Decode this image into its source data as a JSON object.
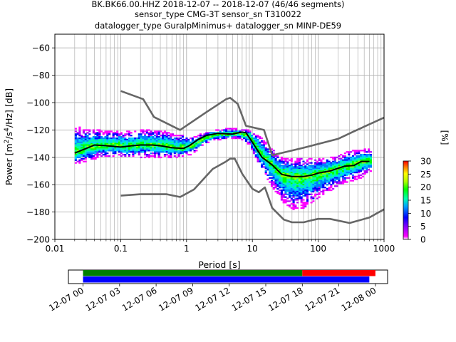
{
  "chart_data": {
    "type": "line",
    "title_lines": [
      "BK.BK66.00.HHZ   2018-12-07 -- 2018-12-07  (46/46 segments)",
      "sensor_type CMG-3T sensor_sn T310022",
      "datalogger_type GuralpMinimus+ datalogger_sn MINP-DE59"
    ],
    "xlabel": "Period [s]",
    "ylabel": "Power [$m^2/s^4/Hz$] [dB]",
    "x_scale": "log",
    "xlim": [
      0.01,
      1000
    ],
    "ylim": [
      -200,
      -50
    ],
    "x_ticks": [
      {
        "value": 0.01,
        "label": "0.01"
      },
      {
        "value": 0.1,
        "label": "0.1"
      },
      {
        "value": 1,
        "label": "1"
      },
      {
        "value": 10,
        "label": "10"
      },
      {
        "value": 100,
        "label": "100"
      },
      {
        "value": 1000,
        "label": "1000"
      }
    ],
    "y_ticks": [
      {
        "value": -60,
        "label": "−60"
      },
      {
        "value": -80,
        "label": "−80"
      },
      {
        "value": -100,
        "label": "−100"
      },
      {
        "value": -120,
        "label": "−120"
      },
      {
        "value": -140,
        "label": "−140"
      },
      {
        "value": -160,
        "label": "−160"
      },
      {
        "value": -180,
        "label": "−180"
      },
      {
        "value": -200,
        "label": "−200"
      }
    ],
    "grid": true,
    "series": [
      {
        "color": "#666666",
        "points": [
          [
            0.1,
            -91.5
          ],
          [
            0.22,
            -97.5
          ],
          [
            0.32,
            -110.5
          ],
          [
            0.8,
            -120
          ],
          [
            2,
            -107
          ],
          [
            4,
            -97.5
          ],
          [
            4.6,
            -96.5
          ],
          [
            6,
            -101
          ],
          [
            8,
            -117
          ],
          [
            15,
            -120
          ],
          [
            20,
            -138.5
          ],
          [
            60,
            -133
          ],
          [
            200,
            -126.5
          ],
          [
            350,
            -121
          ],
          [
            1000,
            -111
          ]
        ]
      },
      {
        "color": "#666666",
        "points": [
          [
            0.1,
            -168
          ],
          [
            0.2,
            -167
          ],
          [
            0.5,
            -167
          ],
          [
            0.8,
            -169
          ],
          [
            1.3,
            -163.5
          ],
          [
            2.5,
            -148.5
          ],
          [
            4,
            -143
          ],
          [
            4.6,
            -141
          ],
          [
            5.4,
            -141
          ],
          [
            7,
            -152
          ],
          [
            10,
            -163
          ],
          [
            12.5,
            -165.5
          ],
          [
            15.5,
            -162
          ],
          [
            20,
            -177
          ],
          [
            30,
            -185.5
          ],
          [
            40,
            -187.5
          ],
          [
            60,
            -187.5
          ],
          [
            80,
            -186
          ],
          [
            100,
            -185
          ],
          [
            150,
            -185
          ],
          [
            300,
            -188
          ],
          [
            600,
            -184
          ],
          [
            1000,
            -178
          ]
        ]
      },
      {
        "color": "#000000",
        "points": [
          [
            0.02,
            -137
          ],
          [
            0.025,
            -135
          ],
          [
            0.03,
            -133.5
          ],
          [
            0.04,
            -131
          ],
          [
            0.06,
            -131.5
          ],
          [
            0.1,
            -132.5
          ],
          [
            0.15,
            -131.5
          ],
          [
            0.2,
            -131
          ],
          [
            0.3,
            -131
          ],
          [
            0.4,
            -131.5
          ],
          [
            0.6,
            -133
          ],
          [
            0.9,
            -133.5
          ],
          [
            1.1,
            -131.5
          ],
          [
            1.5,
            -127
          ],
          [
            2,
            -124
          ],
          [
            3,
            -122.5
          ],
          [
            5,
            -123
          ],
          [
            7,
            -121.5
          ],
          [
            8,
            -122
          ],
          [
            10,
            -129
          ],
          [
            14,
            -140
          ],
          [
            20,
            -145.5
          ],
          [
            28,
            -152.5
          ],
          [
            40,
            -154
          ],
          [
            60,
            -154
          ],
          [
            80,
            -153
          ],
          [
            100,
            -151.5
          ],
          [
            150,
            -150
          ],
          [
            250,
            -146.5
          ],
          [
            350,
            -146
          ],
          [
            450,
            -143
          ],
          [
            600,
            -143
          ]
        ]
      }
    ],
    "density_clouds": [
      {
        "periods": [
          0.02,
          0.03,
          0.05,
          0.08,
          0.13,
          0.2,
          0.32,
          0.5,
          0.8,
          1.2,
          1.8,
          2.7,
          4,
          6,
          9,
          13,
          19,
          28,
          42,
          60,
          90,
          130,
          200,
          300,
          450,
          650
        ],
        "center": [
          -137,
          -134,
          -131,
          -131.5,
          -132.5,
          -131,
          -131,
          -132,
          -133.5,
          -132,
          -127,
          -123.5,
          -123,
          -122.5,
          -124,
          -136,
          -144,
          -152,
          -154,
          -154,
          -152.5,
          -150.5,
          -148,
          -146.5,
          -143,
          -143
        ],
        "upper": [
          -117,
          -119,
          -120,
          -121,
          -121,
          -120,
          -120,
          -121,
          -123,
          -125,
          -122,
          -120,
          -119,
          -119,
          -120,
          -124,
          -133,
          -140,
          -141,
          -140,
          -141,
          -140,
          -139,
          -135,
          -134,
          -133
        ],
        "lower": [
          -145,
          -143,
          -140,
          -139,
          -140,
          -140,
          -140,
          -140,
          -140,
          -138,
          -131,
          -127,
          -127,
          -126,
          -131,
          -147,
          -160,
          -172,
          -179,
          -177,
          -172,
          -166,
          -162,
          -158,
          -155,
          -150
        ]
      }
    ],
    "colorbar": {
      "label": "[%]",
      "ticks": [
        {
          "value": 0,
          "label": "0"
        },
        {
          "value": 5,
          "label": "5"
        },
        {
          "value": 10,
          "label": "10"
        },
        {
          "value": 15,
          "label": "15"
        },
        {
          "value": 20,
          "label": "20"
        },
        {
          "value": 25,
          "label": "25"
        },
        {
          "value": 30,
          "label": "30"
        }
      ],
      "range": [
        0,
        30
      ]
    },
    "timeline": {
      "ticks": [
        {
          "label": "12-07 00",
          "hours": 0
        },
        {
          "label": "12-07 03",
          "hours": 3
        },
        {
          "label": "12-07 06",
          "hours": 6
        },
        {
          "label": "12-07 09",
          "hours": 9
        },
        {
          "label": "12-07 12",
          "hours": 12
        },
        {
          "label": "12-07 15",
          "hours": 15
        },
        {
          "label": "12-07 18",
          "hours": 18
        },
        {
          "label": "12-07 21",
          "hours": 21
        },
        {
          "label": "12-08 00",
          "hours": 24
        }
      ],
      "range_hours": [
        -1.2,
        25.0
      ],
      "bars": [
        {
          "color": "#008000",
          "start_hours": 0,
          "end_hours": 18,
          "row": "top"
        },
        {
          "color": "#ff0000",
          "start_hours": 18,
          "end_hours": 24,
          "row": "top"
        },
        {
          "color": "#0000ff",
          "start_hours": 0,
          "end_hours": 23.5,
          "row": "bottom"
        }
      ]
    }
  }
}
